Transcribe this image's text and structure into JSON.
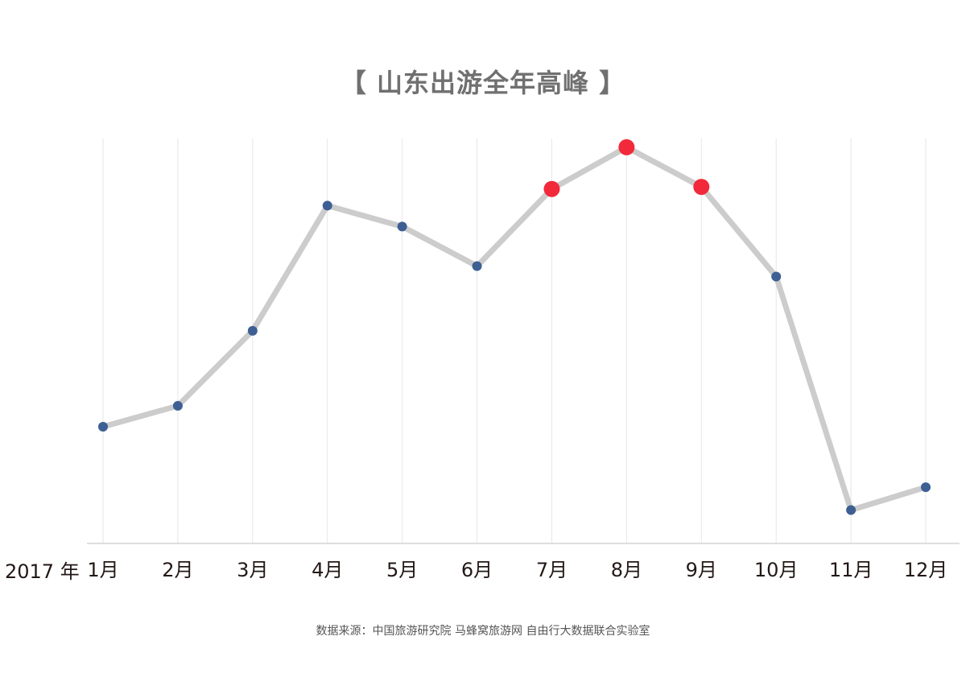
{
  "chart_data": {
    "type": "line",
    "title": "【 山东出游全年高峰 】",
    "x_prefix_label": "2017 年",
    "categories": [
      "1月",
      "2月",
      "3月",
      "4月",
      "5月",
      "6月",
      "7月",
      "8月",
      "9月",
      "10月",
      "11月",
      "12月"
    ],
    "values": [
      28,
      33,
      51,
      81,
      76,
      66.5,
      85,
      95,
      85.5,
      64,
      8,
      13.5
    ],
    "highlight_categories": [
      "7月",
      "8月",
      "9月"
    ],
    "ylim": [
      0,
      100
    ],
    "xlabel": "",
    "ylabel": "",
    "grid": "vertical",
    "y_ticks_shown": false
  },
  "colors": {
    "line": "#cccccc",
    "point": "#3d5f93",
    "highlight_point": "#f1293a",
    "grid": "#e6e6e6",
    "axis": "#d4d4d4",
    "title": "#707070"
  },
  "footer": {
    "source": "数据来源：中国旅游研究院 马蜂窝旅游网 自由行大数据联合实验室"
  }
}
